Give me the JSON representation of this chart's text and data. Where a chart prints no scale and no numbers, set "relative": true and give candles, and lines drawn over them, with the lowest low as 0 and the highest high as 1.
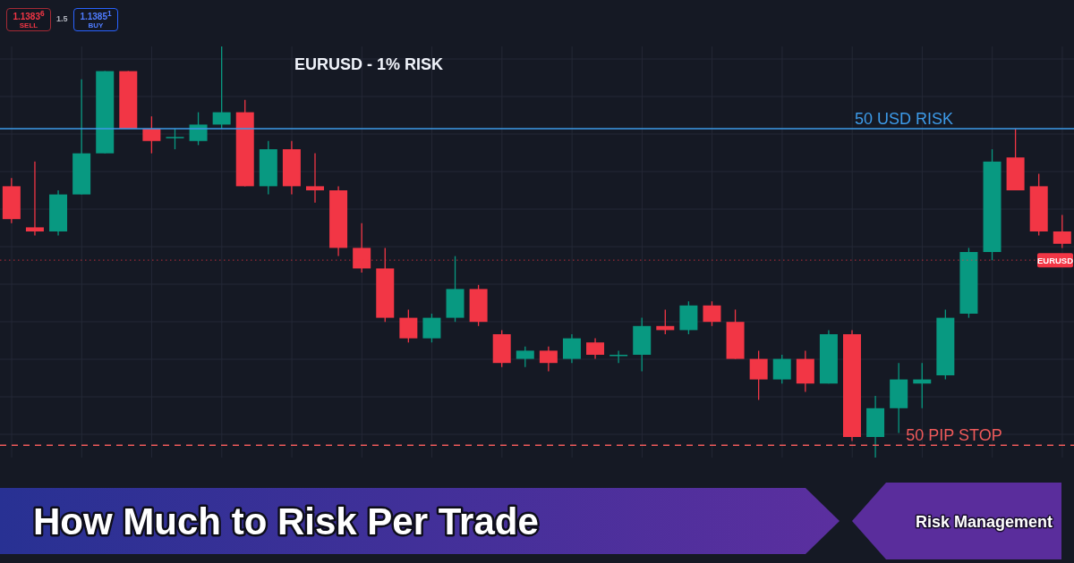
{
  "chart_data": {
    "type": "candlestick",
    "title": "EURUSD - 1% RISK",
    "relative": true,
    "grid": true,
    "categories": [
      null,
      null,
      null,
      null,
      null,
      null,
      null,
      null,
      null,
      null,
      null,
      null,
      null,
      null,
      null,
      null,
      null,
      null,
      null,
      null,
      null,
      null,
      null,
      null,
      null,
      null,
      null,
      null,
      null,
      null,
      null,
      null,
      null,
      null,
      null,
      null,
      null,
      null,
      null,
      null,
      null,
      null,
      null,
      null,
      null,
      null
    ],
    "ohlc": [
      [
        0.66,
        0.68,
        0.57,
        0.58
      ],
      [
        0.56,
        0.72,
        0.54,
        0.55
      ],
      [
        0.55,
        0.65,
        0.54,
        0.64
      ],
      [
        0.64,
        0.92,
        0.64,
        0.74
      ],
      [
        0.74,
        0.94,
        0.74,
        0.94
      ],
      [
        0.94,
        0.94,
        0.8,
        0.8
      ],
      [
        0.8,
        0.83,
        0.74,
        0.77
      ],
      [
        0.78,
        0.8,
        0.75,
        0.78
      ],
      [
        0.77,
        0.84,
        0.76,
        0.81
      ],
      [
        0.81,
        1,
        0.8,
        0.84
      ],
      [
        0.84,
        0.87,
        0.66,
        0.66
      ],
      [
        0.66,
        0.77,
        0.64,
        0.75
      ],
      [
        0.75,
        0.77,
        0.64,
        0.66
      ],
      [
        0.66,
        0.74,
        0.62,
        0.65
      ],
      [
        0.65,
        0.66,
        0.49,
        0.51
      ],
      [
        0.51,
        0.57,
        0.45,
        0.46
      ],
      [
        0.46,
        0.51,
        0.33,
        0.34
      ],
      [
        0.34,
        0.36,
        0.28,
        0.29
      ],
      [
        0.29,
        0.35,
        0.28,
        0.34
      ],
      [
        0.34,
        0.49,
        0.33,
        0.41
      ],
      [
        0.41,
        0.42,
        0.32,
        0.33
      ],
      [
        0.3,
        0.31,
        0.22,
        0.23
      ],
      [
        0.24,
        0.27,
        0.22,
        0.26
      ],
      [
        0.26,
        0.27,
        0.21,
        0.23
      ],
      [
        0.24,
        0.3,
        0.23,
        0.29
      ],
      [
        0.28,
        0.29,
        0.24,
        0.25
      ],
      [
        0.25,
        0.26,
        0.23,
        0.25
      ],
      [
        0.25,
        0.34,
        0.21,
        0.32
      ],
      [
        0.32,
        0.36,
        0.3,
        0.31
      ],
      [
        0.31,
        0.38,
        0.3,
        0.37
      ],
      [
        0.37,
        0.38,
        0.32,
        0.33
      ],
      [
        0.33,
        0.36,
        0.24,
        0.24
      ],
      [
        0.24,
        0.26,
        0.14,
        0.19
      ],
      [
        0.19,
        0.25,
        0.18,
        0.24
      ],
      [
        0.24,
        0.26,
        0.16,
        0.18
      ],
      [
        0.18,
        0.31,
        0.18,
        0.3
      ],
      [
        0.3,
        0.31,
        0.04,
        0.05
      ],
      [
        0.05,
        0.15,
        0,
        0.12
      ],
      [
        0.12,
        0.23,
        0.06,
        0.19
      ],
      [
        0.18,
        0.23,
        0.12,
        0.19
      ],
      [
        0.2,
        0.36,
        0.19,
        0.34
      ],
      [
        0.35,
        0.51,
        0.34,
        0.5
      ],
      [
        0.5,
        0.75,
        0.48,
        0.72
      ],
      [
        0.73,
        0.8,
        0.65,
        0.65
      ],
      [
        0.66,
        0.69,
        0.54,
        0.55
      ],
      [
        0.55,
        0.59,
        0.51,
        0.52
      ]
    ],
    "colors": [
      "#f23645",
      "#f23645",
      "#089981",
      "#089981",
      "#089981",
      "#f23645",
      "#f23645",
      "#089981",
      "#089981",
      "#089981",
      "#f23645",
      "#089981",
      "#f23645",
      "#f23645",
      "#f23645",
      "#f23645",
      "#f23645",
      "#f23645",
      "#089981",
      "#089981",
      "#f23645",
      "#f23645",
      "#089981",
      "#f23645",
      "#089981",
      "#f23645",
      "#089981",
      "#089981",
      "#f23645",
      "#089981",
      "#f23645",
      "#f23645",
      "#f23645",
      "#089981",
      "#f23645",
      "#089981",
      "#f23645",
      "#089981",
      "#089981",
      "#089981",
      "#089981",
      "#089981",
      "#089981",
      "#f23645",
      "#f23645",
      "#f23645"
    ],
    "ref_lines": [
      {
        "axis": "y",
        "value": 0.8,
        "label": "50 USD RISK",
        "color": "#3d9be9",
        "line_style": "solid"
      },
      {
        "axis": "y",
        "value": 0.48,
        "label": "EURUSD",
        "color": "#f23645",
        "line_style": "dotted"
      },
      {
        "axis": "y",
        "value": 0.03,
        "label": "50 PIP STOP",
        "color": "#f05a5a",
        "line_style": "dashed"
      }
    ],
    "annotations": [
      "1.1383$^{6}$",
      "SELL",
      "1.5",
      "1.1385$^{1}$",
      "BUY",
      "How Much to Risk Per Trade",
      "Risk Management"
    ]
  }
}
